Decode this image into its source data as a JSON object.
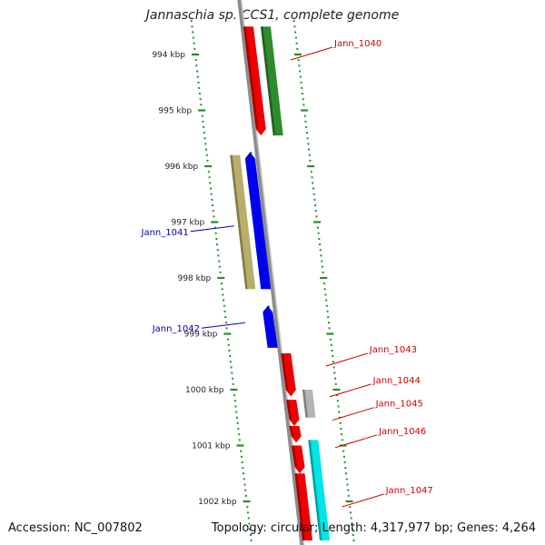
{
  "title": "Jannaschia sp. CCS1, complete genome",
  "footer": {
    "accession": "Accession: NC_007802",
    "summary": "Topology: circular; Length: 4,317,977 bp; Genes: 4,264"
  },
  "colors": {
    "backbone": "#8c8c8c",
    "tick": "#2a8a2a",
    "forward_label": "#cc0000",
    "reverse_label": "#0000aa"
  },
  "ticks": [
    {
      "kbp": 994,
      "label": "994 kbp"
    },
    {
      "kbp": 995,
      "label": "995 kbp"
    },
    {
      "kbp": 996,
      "label": "996 kbp"
    },
    {
      "kbp": 997,
      "label": "997 kbp"
    },
    {
      "kbp": 998,
      "label": "998 kbp"
    },
    {
      "kbp": 999,
      "label": "999 kbp"
    },
    {
      "kbp": 1000,
      "label": "1000 kbp"
    },
    {
      "kbp": 1001,
      "label": "1001 kbp"
    },
    {
      "kbp": 1002,
      "label": "1002 kbp"
    }
  ],
  "features": [
    {
      "name": "fwd-red-top",
      "strand": "+",
      "lane": 1,
      "start_kbp": 993.5,
      "end_kbp": 995.45,
      "color": "#ee0000",
      "arrow": true
    },
    {
      "name": "fwd-green-top",
      "strand": "+",
      "lane": 2,
      "start_kbp": 993.5,
      "end_kbp": 995.45,
      "color": "#2e8b2e",
      "arrow": false
    },
    {
      "name": "rev-khaki",
      "strand": "-",
      "lane": 2,
      "start_kbp": 995.8,
      "end_kbp": 998.2,
      "color": "#b8ae6a",
      "arrow": false
    },
    {
      "name": "rev-blue-1",
      "strand": "-",
      "lane": 1,
      "start_kbp": 995.75,
      "end_kbp": 998.2,
      "color": "#0000ee",
      "arrow": true
    },
    {
      "name": "rev-blue-2",
      "strand": "-",
      "lane": 1,
      "start_kbp": 998.5,
      "end_kbp": 999.25,
      "color": "#0000ee",
      "arrow": true
    },
    {
      "name": "fwd-red-1043",
      "strand": "+",
      "lane": 1,
      "start_kbp": 999.35,
      "end_kbp": 1000.12,
      "color": "#ee0000",
      "arrow": true
    },
    {
      "name": "fwd-red-1044",
      "strand": "+",
      "lane": 1,
      "start_kbp": 1000.18,
      "end_kbp": 1000.65,
      "color": "#ee0000",
      "arrow": true
    },
    {
      "name": "fwd-gray-1044",
      "strand": "+",
      "lane": 2,
      "start_kbp": 1000.0,
      "end_kbp": 1000.5,
      "color": "#b4b4b4",
      "arrow": false
    },
    {
      "name": "fwd-red-1045",
      "strand": "+",
      "lane": 1,
      "start_kbp": 1000.65,
      "end_kbp": 1000.95,
      "color": "#ee0000",
      "arrow": true
    },
    {
      "name": "fwd-red-1046",
      "strand": "+",
      "lane": 1,
      "start_kbp": 1001.0,
      "end_kbp": 1001.5,
      "color": "#ee0000",
      "arrow": true
    },
    {
      "name": "fwd-cyan",
      "strand": "+",
      "lane": 2,
      "start_kbp": 1000.9,
      "end_kbp": 1002.7,
      "color": "#00e5e5",
      "arrow": false
    },
    {
      "name": "fwd-red-bottom",
      "strand": "+",
      "lane": 1,
      "start_kbp": 1001.5,
      "end_kbp": 1002.7,
      "color": "#ee0000",
      "arrow": false
    }
  ],
  "labels": [
    {
      "text": "Jann_1040",
      "side": "right",
      "kbp": 994.0,
      "color": "#cc0000"
    },
    {
      "text": "Jann_1041",
      "side": "left",
      "kbp": 997.07,
      "color": "#0000aa"
    },
    {
      "text": "Jann_1042",
      "side": "left",
      "kbp": 998.8,
      "color": "#0000aa"
    },
    {
      "text": "Jann_1043",
      "side": "right",
      "kbp": 999.48,
      "color": "#cc0000"
    },
    {
      "text": "Jann_1044",
      "side": "right",
      "kbp": 1000.03,
      "color": "#cc0000"
    },
    {
      "text": "Jann_1045",
      "side": "right",
      "kbp": 1000.45,
      "color": "#cc0000"
    },
    {
      "text": "Jann_1046",
      "side": "right",
      "kbp": 1000.94,
      "color": "#cc0000"
    },
    {
      "text": "Jann_1047",
      "side": "right",
      "kbp": 1002.0,
      "color": "#cc0000"
    }
  ]
}
